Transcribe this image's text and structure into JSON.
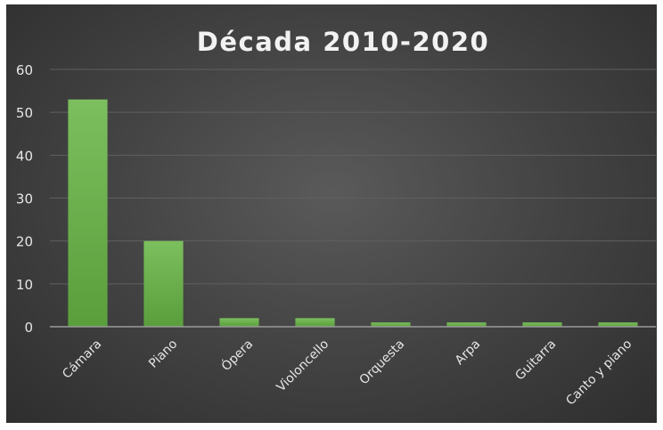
{
  "chart_data": {
    "type": "bar",
    "title": "Década 2010-2020",
    "categories": [
      "Cámara",
      "Piano",
      "Ópera",
      "Violoncello",
      "Orquesta",
      "Arpa",
      "Guitarra",
      "Canto y piano"
    ],
    "values": [
      53,
      20,
      2,
      2,
      1,
      1,
      1,
      1
    ],
    "ylim": [
      0,
      60
    ],
    "yticks": [
      0,
      10,
      20,
      30,
      40,
      50,
      60
    ],
    "grid": true,
    "legend": "none",
    "colors": {
      "bar_top": "#7cbf5e",
      "bar_bottom": "#5a9e3c",
      "background": "#474747",
      "gridline": "#5f5f5f",
      "axis": "#9a9a9a",
      "text": "#e6e6e6"
    }
  }
}
